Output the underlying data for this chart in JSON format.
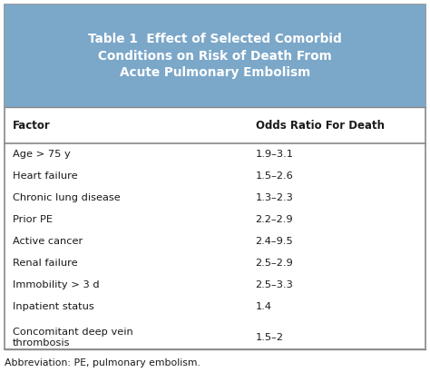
{
  "title_label": "Table 1",
  "title_text": "Effect of Selected Comorbid\nConditions on Risk of Death From\nAcute Pulmonary Embolism",
  "header_bg": "#7ba7c9",
  "header_text_color": "#ffffff",
  "col1_header": "Factor",
  "col2_header": "Odds Ratio For Death",
  "rows": [
    [
      "Age > 75 y",
      "1.9–3.1"
    ],
    [
      "Heart failure",
      "1.5–2.6"
    ],
    [
      "Chronic lung disease",
      "1.3–2.3"
    ],
    [
      "Prior PE",
      "2.2–2.9"
    ],
    [
      "Active cancer",
      "2.4–9.5"
    ],
    [
      "Renal failure",
      "2.5–2.9"
    ],
    [
      "Immobility > 3 d",
      "2.5–3.3"
    ],
    [
      "Inpatient status",
      "1.4"
    ],
    [
      "Concomitant deep vein\nthrombosis",
      "1.5–2"
    ]
  ],
  "border_color": "#888888",
  "text_color": "#1a1a1a",
  "abbreviation": "Abbreviation: PE, pulmonary embolism.",
  "fig_bg": "#ffffff",
  "col_split": 0.575
}
